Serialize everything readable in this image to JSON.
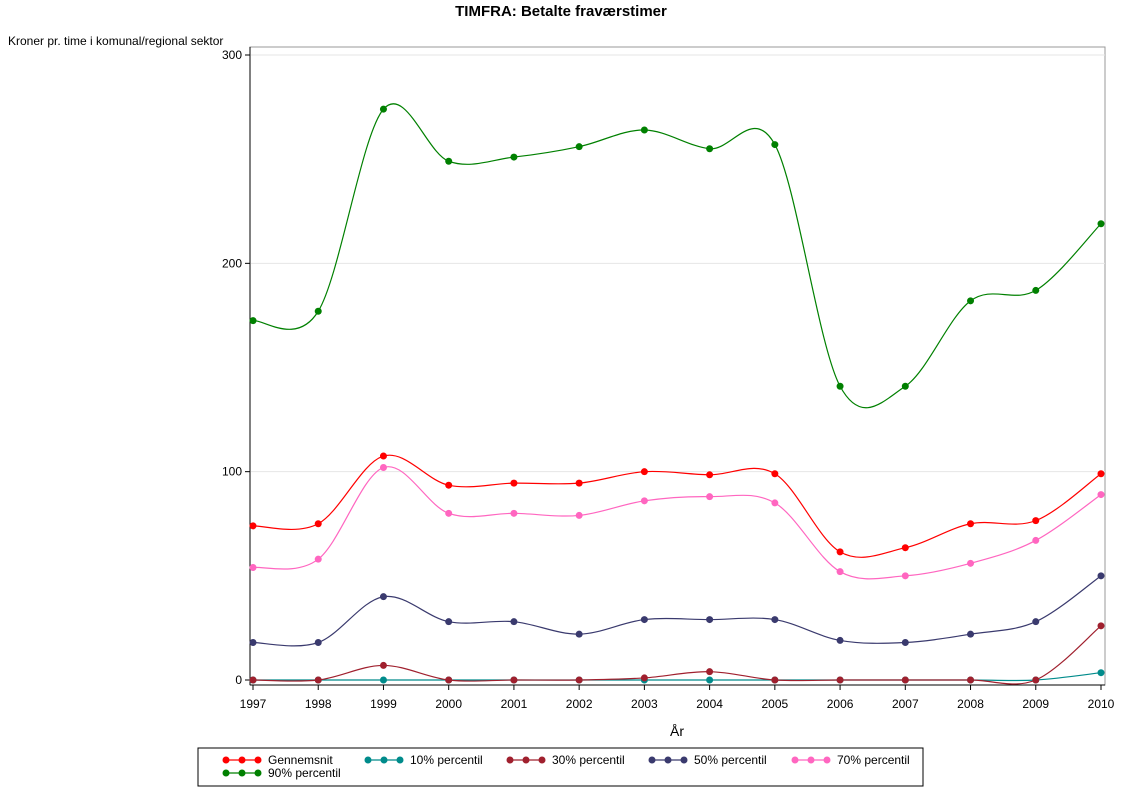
{
  "chart_data": {
    "type": "line",
    "title": "TIMFRA: Betalte fraværstimer",
    "ylabel": "Kroner pr. time i komunal/regional sektor",
    "xlabel": "År",
    "ylim": [
      0,
      300
    ],
    "yticks": [
      0,
      100,
      200,
      300
    ],
    "x": [
      1997,
      1998,
      1999,
      2000,
      2001,
      2002,
      2003,
      2004,
      2005,
      2006,
      2007,
      2008,
      2009,
      2010
    ],
    "grid": true,
    "legend_position": "bottom",
    "series": [
      {
        "name": "Gennemsnit",
        "color": "#ff0000",
        "values": [
          74,
          75,
          107.5,
          93.5,
          94.5,
          94.5,
          100,
          98.5,
          99,
          61.5,
          63.5,
          75,
          76.5,
          99
        ]
      },
      {
        "name": "10% percentil",
        "color": "#008b8b",
        "values": [
          0,
          0,
          0,
          0,
          0,
          0,
          0,
          0,
          0,
          0,
          0,
          0,
          0,
          3.5
        ]
      },
      {
        "name": "30% percentil",
        "color": "#a0202e",
        "values": [
          0,
          0,
          7,
          0,
          0,
          0,
          1,
          4,
          0,
          0,
          0,
          0,
          0,
          26
        ]
      },
      {
        "name": "50% percentil",
        "color": "#3a3a6e",
        "values": [
          18,
          18,
          40,
          28,
          28,
          22,
          29,
          29,
          29,
          19,
          18,
          22,
          28,
          50
        ]
      },
      {
        "name": "70% percentil",
        "color": "#ff66c0",
        "values": [
          54,
          58,
          102,
          80,
          80,
          79,
          86,
          88,
          85,
          52,
          50,
          56,
          67,
          89
        ]
      },
      {
        "name": "90% percentil",
        "color": "#008000",
        "values": [
          172.5,
          177,
          274,
          249,
          251,
          256,
          264,
          255,
          257,
          141,
          141,
          182,
          187,
          219
        ]
      }
    ]
  }
}
